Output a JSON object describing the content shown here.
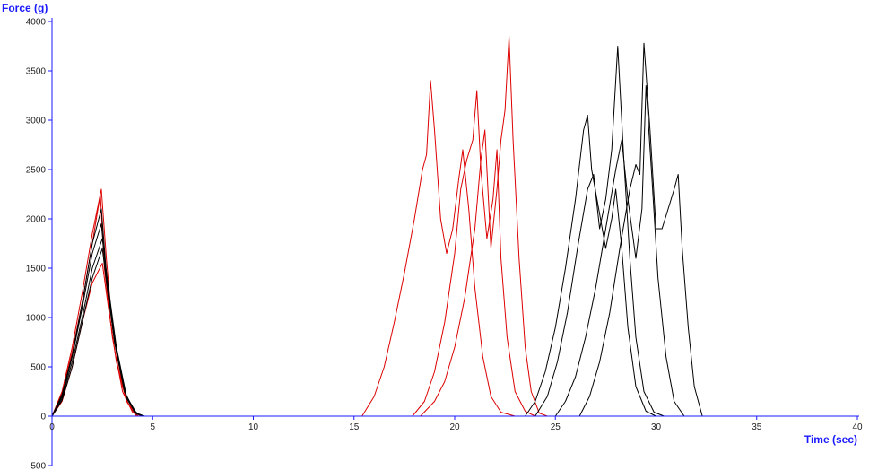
{
  "chart_data": {
    "type": "line",
    "title": "",
    "xlabel": "Time (sec)",
    "ylabel": "Force (g)",
    "xlim": [
      0,
      40
    ],
    "ylim": [
      -500,
      4000
    ],
    "xticks": [
      0,
      5,
      10,
      15,
      20,
      25,
      30,
      35,
      40
    ],
    "yticks": [
      -500,
      0,
      500,
      1000,
      1500,
      2000,
      2500,
      3000,
      3500,
      4000
    ],
    "grid": false,
    "legend": "none",
    "colors": {
      "axis": "#1a1aff",
      "red": "#dd0000",
      "black": "#000000"
    },
    "series": [
      {
        "color": "#dd0000",
        "points": [
          [
            0,
            0
          ],
          [
            0.5,
            250
          ],
          [
            1.0,
            700
          ],
          [
            1.5,
            1250
          ],
          [
            2.0,
            1850
          ],
          [
            2.45,
            2300
          ],
          [
            2.7,
            1600
          ],
          [
            3.0,
            900
          ],
          [
            3.5,
            300
          ],
          [
            4.0,
            60
          ],
          [
            4.4,
            0
          ]
        ]
      },
      {
        "color": "#dd0000",
        "points": [
          [
            0,
            0
          ],
          [
            0.5,
            230
          ],
          [
            1.0,
            650
          ],
          [
            1.5,
            1150
          ],
          [
            2.0,
            1750
          ],
          [
            2.4,
            2250
          ],
          [
            2.6,
            1500
          ],
          [
            3.0,
            800
          ],
          [
            3.5,
            250
          ],
          [
            4.0,
            40
          ],
          [
            4.3,
            0
          ]
        ]
      },
      {
        "color": "#dd0000",
        "points": [
          [
            0,
            0
          ],
          [
            0.5,
            150
          ],
          [
            1.0,
            500
          ],
          [
            1.5,
            950
          ],
          [
            2.0,
            1350
          ],
          [
            2.5,
            1550
          ],
          [
            2.8,
            1100
          ],
          [
            3.2,
            550
          ],
          [
            3.7,
            150
          ],
          [
            4.2,
            0
          ]
        ]
      },
      {
        "color": "#000000",
        "points": [
          [
            0,
            0
          ],
          [
            0.5,
            200
          ],
          [
            1.0,
            600
          ],
          [
            1.5,
            1100
          ],
          [
            2.0,
            1650
          ],
          [
            2.45,
            1950
          ],
          [
            2.7,
            1400
          ],
          [
            3.1,
            750
          ],
          [
            3.6,
            250
          ],
          [
            4.1,
            50
          ],
          [
            4.5,
            0
          ]
        ]
      },
      {
        "color": "#000000",
        "points": [
          [
            0,
            0
          ],
          [
            0.5,
            180
          ],
          [
            1.0,
            550
          ],
          [
            1.5,
            1000
          ],
          [
            2.0,
            1500
          ],
          [
            2.5,
            1800
          ],
          [
            2.8,
            1300
          ],
          [
            3.2,
            700
          ],
          [
            3.7,
            200
          ],
          [
            4.2,
            30
          ],
          [
            4.6,
            0
          ]
        ]
      },
      {
        "color": "#000000",
        "points": [
          [
            0,
            0
          ],
          [
            0.5,
            220
          ],
          [
            1.0,
            620
          ],
          [
            1.5,
            1150
          ],
          [
            2.0,
            1750
          ],
          [
            2.45,
            2100
          ],
          [
            2.7,
            1450
          ],
          [
            3.1,
            800
          ],
          [
            3.6,
            250
          ],
          [
            4.1,
            40
          ],
          [
            4.5,
            0
          ]
        ]
      },
      {
        "color": "#000000",
        "points": [
          [
            0,
            0
          ],
          [
            0.5,
            160
          ],
          [
            1.0,
            500
          ],
          [
            1.5,
            950
          ],
          [
            2.0,
            1400
          ],
          [
            2.5,
            1700
          ],
          [
            2.8,
            1200
          ],
          [
            3.2,
            650
          ],
          [
            3.7,
            180
          ],
          [
            4.2,
            20
          ],
          [
            4.6,
            0
          ]
        ]
      },
      {
        "color": "#dd0000",
        "points": [
          [
            15.4,
            0
          ],
          [
            16.0,
            200
          ],
          [
            16.5,
            500
          ],
          [
            17.0,
            950
          ],
          [
            17.5,
            1450
          ],
          [
            18.0,
            2000
          ],
          [
            18.4,
            2500
          ],
          [
            18.6,
            2650
          ],
          [
            18.8,
            3400
          ],
          [
            19.0,
            2900
          ],
          [
            19.3,
            2000
          ],
          [
            19.6,
            1650
          ],
          [
            19.9,
            1900
          ],
          [
            20.2,
            2400
          ],
          [
            20.4,
            2700
          ],
          [
            20.7,
            2100
          ],
          [
            21.0,
            1300
          ],
          [
            21.4,
            600
          ],
          [
            21.8,
            200
          ],
          [
            22.3,
            40
          ],
          [
            23.0,
            0
          ]
        ]
      },
      {
        "color": "#dd0000",
        "points": [
          [
            17.9,
            0
          ],
          [
            18.5,
            150
          ],
          [
            19.0,
            450
          ],
          [
            19.5,
            950
          ],
          [
            20.0,
            1650
          ],
          [
            20.3,
            2300
          ],
          [
            20.6,
            2600
          ],
          [
            20.9,
            2800
          ],
          [
            21.1,
            3300
          ],
          [
            21.3,
            2500
          ],
          [
            21.6,
            1800
          ],
          [
            21.9,
            2200
          ],
          [
            22.1,
            2700
          ],
          [
            22.3,
            1600
          ],
          [
            22.6,
            800
          ],
          [
            23.0,
            250
          ],
          [
            23.5,
            50
          ],
          [
            24.0,
            0
          ]
        ]
      },
      {
        "color": "#dd0000",
        "points": [
          [
            18.3,
            0
          ],
          [
            19.0,
            150
          ],
          [
            19.5,
            350
          ],
          [
            20.0,
            700
          ],
          [
            20.5,
            1200
          ],
          [
            21.0,
            1900
          ],
          [
            21.3,
            2600
          ],
          [
            21.5,
            2900
          ],
          [
            21.8,
            1700
          ],
          [
            22.1,
            2300
          ],
          [
            22.3,
            2800
          ],
          [
            22.5,
            3100
          ],
          [
            22.7,
            3850
          ],
          [
            22.9,
            2800
          ],
          [
            23.2,
            1600
          ],
          [
            23.5,
            700
          ],
          [
            23.8,
            250
          ],
          [
            24.2,
            30
          ],
          [
            24.6,
            0
          ]
        ]
      },
      {
        "color": "#000000",
        "points": [
          [
            23.5,
            0
          ],
          [
            24.0,
            150
          ],
          [
            24.5,
            450
          ],
          [
            25.0,
            900
          ],
          [
            25.5,
            1500
          ],
          [
            26.0,
            2200
          ],
          [
            26.4,
            2900
          ],
          [
            26.6,
            3050
          ],
          [
            26.8,
            2500
          ],
          [
            27.2,
            2050
          ],
          [
            27.5,
            1700
          ],
          [
            27.8,
            2000
          ],
          [
            28.0,
            2300
          ],
          [
            28.3,
            1700
          ],
          [
            28.6,
            900
          ],
          [
            29.0,
            300
          ],
          [
            29.5,
            50
          ],
          [
            30.0,
            0
          ]
        ]
      },
      {
        "color": "#000000",
        "points": [
          [
            24.0,
            0
          ],
          [
            24.6,
            200
          ],
          [
            25.1,
            550
          ],
          [
            25.6,
            1050
          ],
          [
            26.1,
            1700
          ],
          [
            26.6,
            2300
          ],
          [
            26.9,
            2450
          ],
          [
            27.2,
            1900
          ],
          [
            27.5,
            2200
          ],
          [
            27.8,
            2700
          ],
          [
            28.1,
            3750
          ],
          [
            28.4,
            2600
          ],
          [
            28.7,
            1600
          ],
          [
            29.0,
            800
          ],
          [
            29.4,
            250
          ],
          [
            29.9,
            40
          ],
          [
            30.4,
            0
          ]
        ]
      },
      {
        "color": "#000000",
        "points": [
          [
            25.0,
            0
          ],
          [
            25.5,
            150
          ],
          [
            26.0,
            400
          ],
          [
            26.5,
            800
          ],
          [
            27.0,
            1300
          ],
          [
            27.5,
            1900
          ],
          [
            28.0,
            2500
          ],
          [
            28.3,
            2800
          ],
          [
            28.6,
            2200
          ],
          [
            29.0,
            1600
          ],
          [
            29.3,
            2100
          ],
          [
            29.5,
            3350
          ],
          [
            29.8,
            2400
          ],
          [
            30.1,
            1400
          ],
          [
            30.5,
            600
          ],
          [
            30.9,
            150
          ],
          [
            31.4,
            0
          ]
        ]
      },
      {
        "color": "#000000",
        "points": [
          [
            26.2,
            0
          ],
          [
            26.7,
            200
          ],
          [
            27.2,
            550
          ],
          [
            27.7,
            1050
          ],
          [
            28.2,
            1700
          ],
          [
            28.7,
            2300
          ],
          [
            29.0,
            2550
          ],
          [
            29.2,
            2450
          ],
          [
            29.4,
            3780
          ],
          [
            29.7,
            2900
          ],
          [
            30.0,
            1900
          ],
          [
            30.3,
            1900
          ],
          [
            30.6,
            2100
          ],
          [
            30.9,
            2300
          ],
          [
            31.1,
            2450
          ],
          [
            31.3,
            1700
          ],
          [
            31.6,
            900
          ],
          [
            31.9,
            300
          ],
          [
            32.3,
            0
          ]
        ]
      }
    ]
  }
}
